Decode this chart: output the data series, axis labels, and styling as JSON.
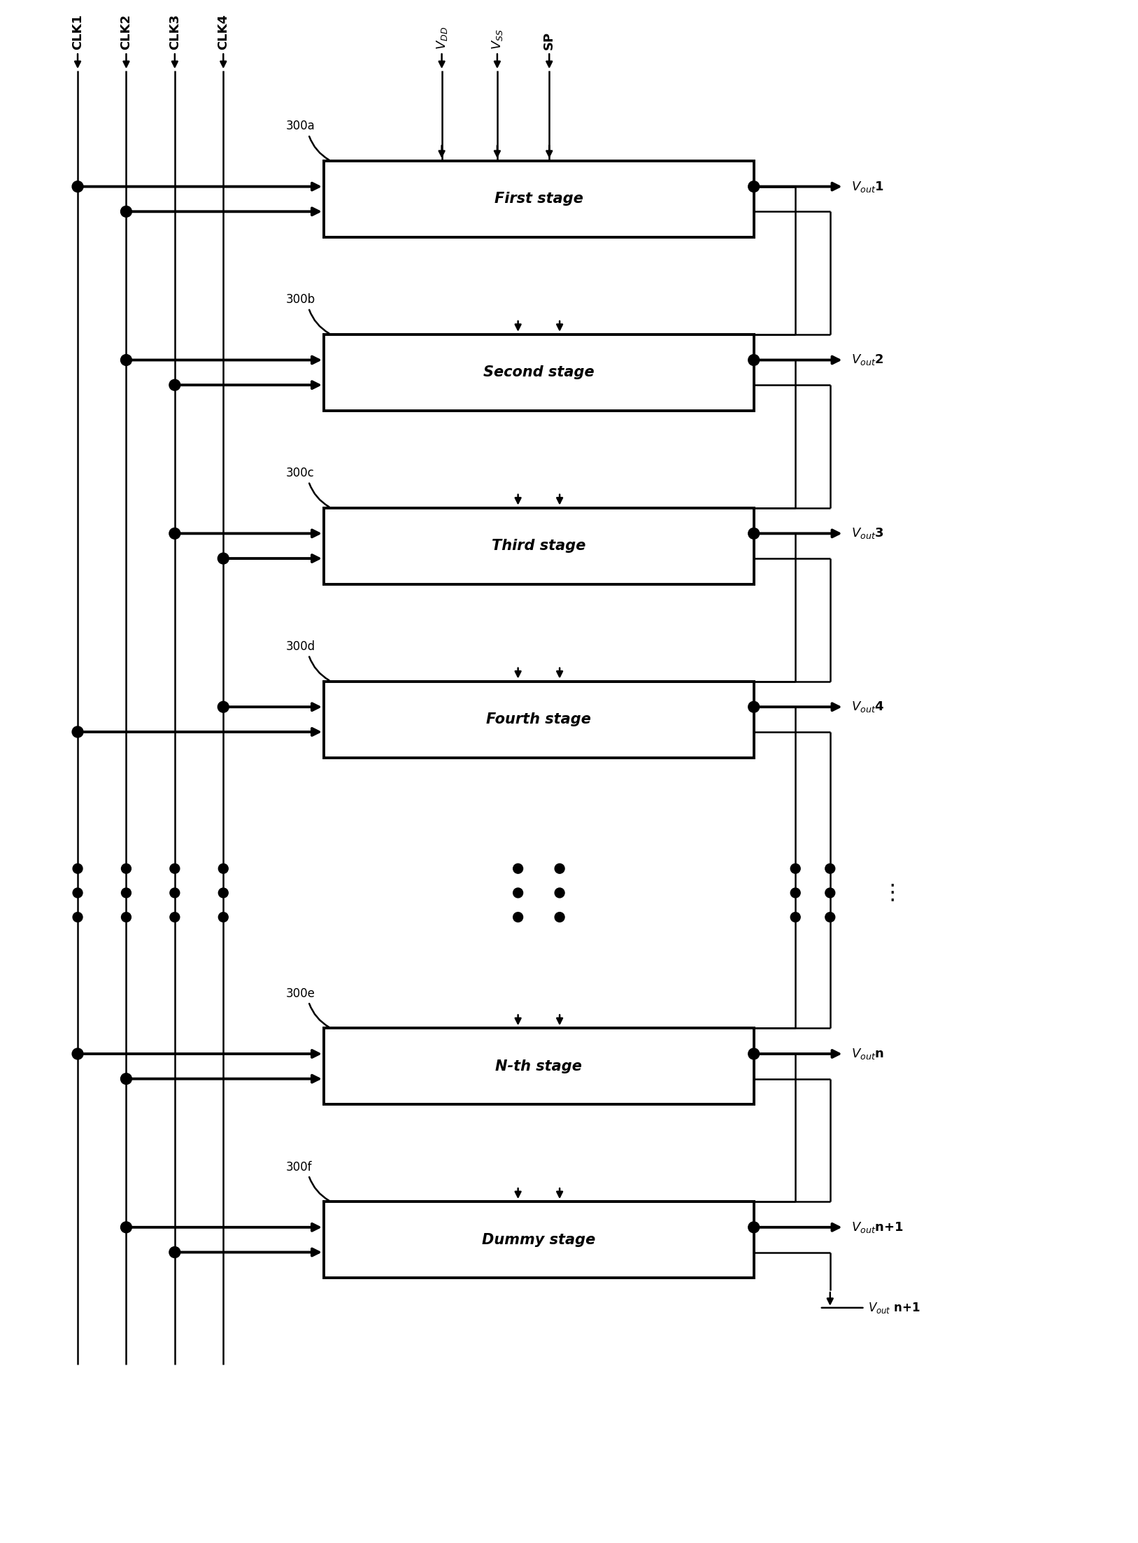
{
  "stages": [
    {
      "label": "First stage",
      "id": "300a",
      "vout_num": "1",
      "clk_idx": [
        0,
        1
      ]
    },
    {
      "label": "Second stage",
      "id": "300b",
      "vout_num": "2",
      "clk_idx": [
        1,
        2
      ]
    },
    {
      "label": "Third stage",
      "id": "300c",
      "vout_num": "3",
      "clk_idx": [
        2,
        3
      ]
    },
    {
      "label": "Fourth stage",
      "id": "300d",
      "vout_num": "4",
      "clk_idx": [
        3,
        0
      ]
    },
    {
      "label": "N-th stage",
      "id": "300e",
      "vout_num": "n",
      "clk_idx": [
        0,
        1
      ]
    },
    {
      "label": "Dummy stage",
      "id": "300f",
      "vout_num": "n+1",
      "clk_idx": [
        1,
        2
      ]
    }
  ],
  "clk_labels": [
    "CLK1",
    "CLK2",
    "CLK3",
    "CLK4"
  ],
  "pwr_labels": [
    "$V_{DD}$",
    "$V_{SS}$",
    "SP"
  ],
  "bg_color": "#ffffff",
  "lc": "#000000"
}
